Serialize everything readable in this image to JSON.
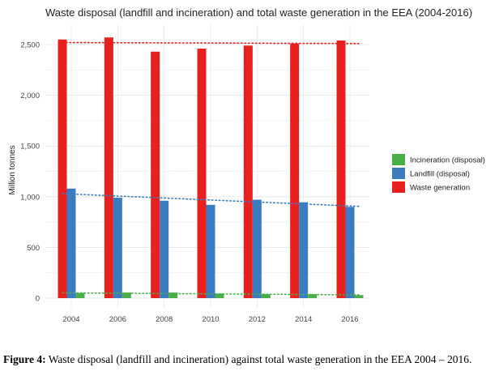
{
  "chart_data": {
    "type": "bar",
    "title": "Waste disposal (landfill and incineration) and total waste generation in the EEA (2004-2016)",
    "xlabel": "",
    "ylabel": "Million tonnes",
    "ylim": [
      0,
      2600
    ],
    "yticks": [
      0,
      500,
      1000,
      1500,
      2000,
      2500
    ],
    "ytick_labels": [
      "0",
      "500",
      "1,000",
      "1,500",
      "2,000",
      "2,500"
    ],
    "categories": [
      "2004",
      "2006",
      "2008",
      "2010",
      "2012",
      "2014",
      "2016"
    ],
    "grid": true,
    "legend_position": "right",
    "series": [
      {
        "name": "Waste generation",
        "color": "#e8201e",
        "values": [
          2550,
          2570,
          2430,
          2460,
          2490,
          2510,
          2540
        ]
      },
      {
        "name": "Landfill (disposal)",
        "color": "#3a7cbf",
        "values": [
          1080,
          990,
          960,
          920,
          970,
          945,
          900
        ]
      },
      {
        "name": "Incineration (disposal)",
        "color": "#4aaf48",
        "values": [
          50,
          55,
          55,
          45,
          40,
          40,
          30
        ]
      }
    ],
    "legend_order": [
      "Incineration (disposal)",
      "Landfill (disposal)",
      "Waste generation"
    ],
    "trendlines": [
      {
        "series": "Waste generation",
        "start": 2520,
        "end": 2510
      },
      {
        "series": "Landfill (disposal)",
        "start": 1030,
        "end": 905
      },
      {
        "series": "Incineration (disposal)",
        "start": 52,
        "end": 32
      }
    ]
  },
  "caption": {
    "label": "Figure 4:",
    "text": " Waste disposal (landfill and incineration) against total waste generation in the EEA 2004 – 2016."
  }
}
